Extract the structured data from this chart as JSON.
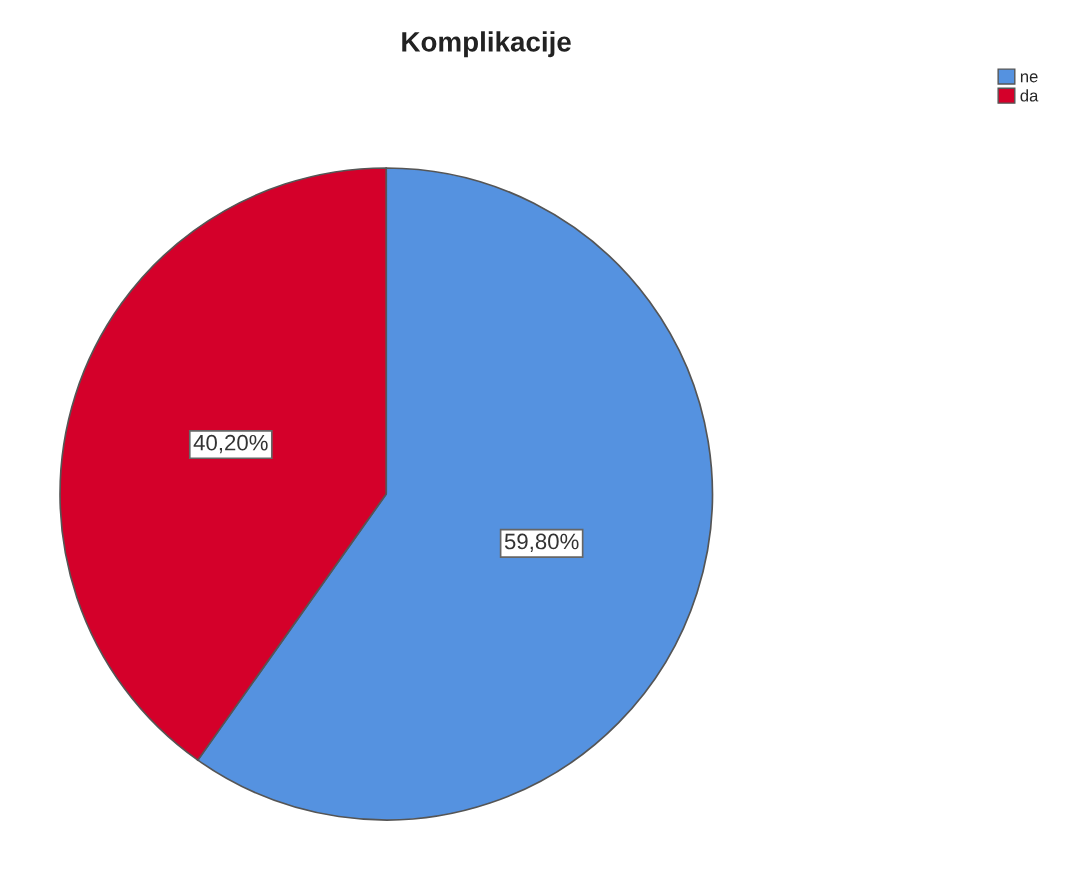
{
  "chart_data": {
    "type": "pie",
    "title": "Komplikacije",
    "categories": [
      "ne",
      "da"
    ],
    "values": [
      59.8,
      40.2
    ],
    "colors": [
      "#5592e0",
      "#d4002a"
    ],
    "value_labels": [
      "59,80%",
      "40,20%"
    ],
    "legend": "top right"
  }
}
